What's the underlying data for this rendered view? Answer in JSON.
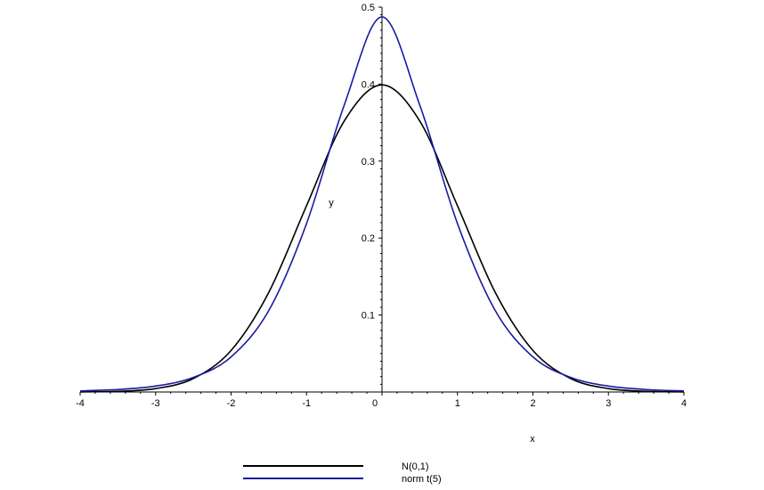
{
  "chart_data": {
    "type": "line",
    "title": "",
    "xlabel": "x",
    "ylabel": "y",
    "xlim": [
      -4,
      4
    ],
    "ylim": [
      0,
      0.5
    ],
    "x_ticks": [
      -4,
      -3,
      -2,
      -1,
      0,
      1,
      2,
      3,
      4
    ],
    "y_ticks": [
      0.1,
      0.2,
      0.3,
      0.4,
      0.5
    ],
    "x_tick_labels": [
      "-4",
      "-3",
      "-2",
      "-1",
      "0",
      "1",
      "2",
      "3",
      "4"
    ],
    "y_tick_labels": [
      "0.1",
      "0.2",
      "0.3",
      "0.4",
      "0.5"
    ],
    "grid": false,
    "legend_position": "bottom-center",
    "series": [
      {
        "name": "N(0,1)",
        "color": "#000000",
        "x": [
          -4,
          -3.5,
          -3,
          -2.5,
          -2,
          -1.5,
          -1,
          -0.5,
          0,
          0.5,
          1,
          1.5,
          2,
          2.5,
          3,
          3.5,
          4
        ],
        "y": [
          0.0001,
          0.0009,
          0.0044,
          0.0175,
          0.054,
          0.1295,
          0.242,
          0.3521,
          0.3989,
          0.3521,
          0.242,
          0.1295,
          0.054,
          0.0175,
          0.0044,
          0.0009,
          0.0001
        ]
      },
      {
        "name": "norm t(5)",
        "color": "#1a1aa0",
        "x": [
          -4,
          -3.5,
          -3,
          -2.5,
          -2,
          -1.5,
          -1,
          -0.5,
          0,
          0.5,
          1,
          1.5,
          2,
          2.5,
          3,
          3.5,
          4
        ],
        "y": [
          0.0014,
          0.0032,
          0.0077,
          0.0189,
          0.0456,
          0.1059,
          0.2188,
          0.3728,
          0.4873,
          0.3728,
          0.2188,
          0.1059,
          0.0456,
          0.0189,
          0.0077,
          0.0032,
          0.0014
        ]
      }
    ]
  }
}
